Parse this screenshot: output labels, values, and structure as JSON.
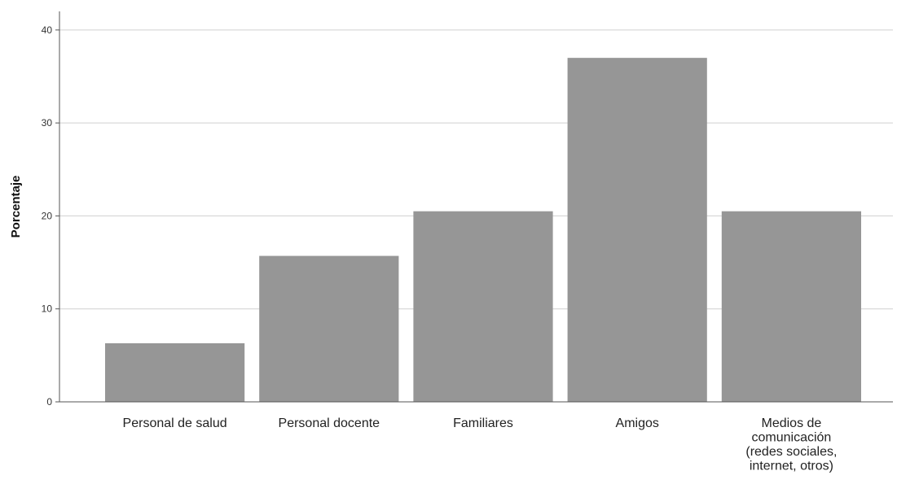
{
  "chart_data": {
    "type": "bar",
    "title": "",
    "xlabel": "",
    "ylabel": "Porcentaje",
    "categories": [
      "Personal de salud",
      "Personal docente",
      "Familiares",
      "Amigos",
      "Medios de comunicación (redes sociales, internet, otros)"
    ],
    "category_label_lines": [
      [
        "Personal de salud"
      ],
      [
        "Personal docente"
      ],
      [
        "Familiares"
      ],
      [
        "Amigos"
      ],
      [
        "Medios de",
        "comunicación",
        "(redes sociales,",
        "internet, otros)"
      ]
    ],
    "values": [
      6.3,
      15.7,
      20.5,
      37.0,
      20.5
    ],
    "ylim": [
      0,
      42
    ],
    "yticks": [
      0,
      10,
      20,
      30,
      40
    ],
    "grid": true,
    "legend": "none",
    "bar_color": "#969696"
  }
}
